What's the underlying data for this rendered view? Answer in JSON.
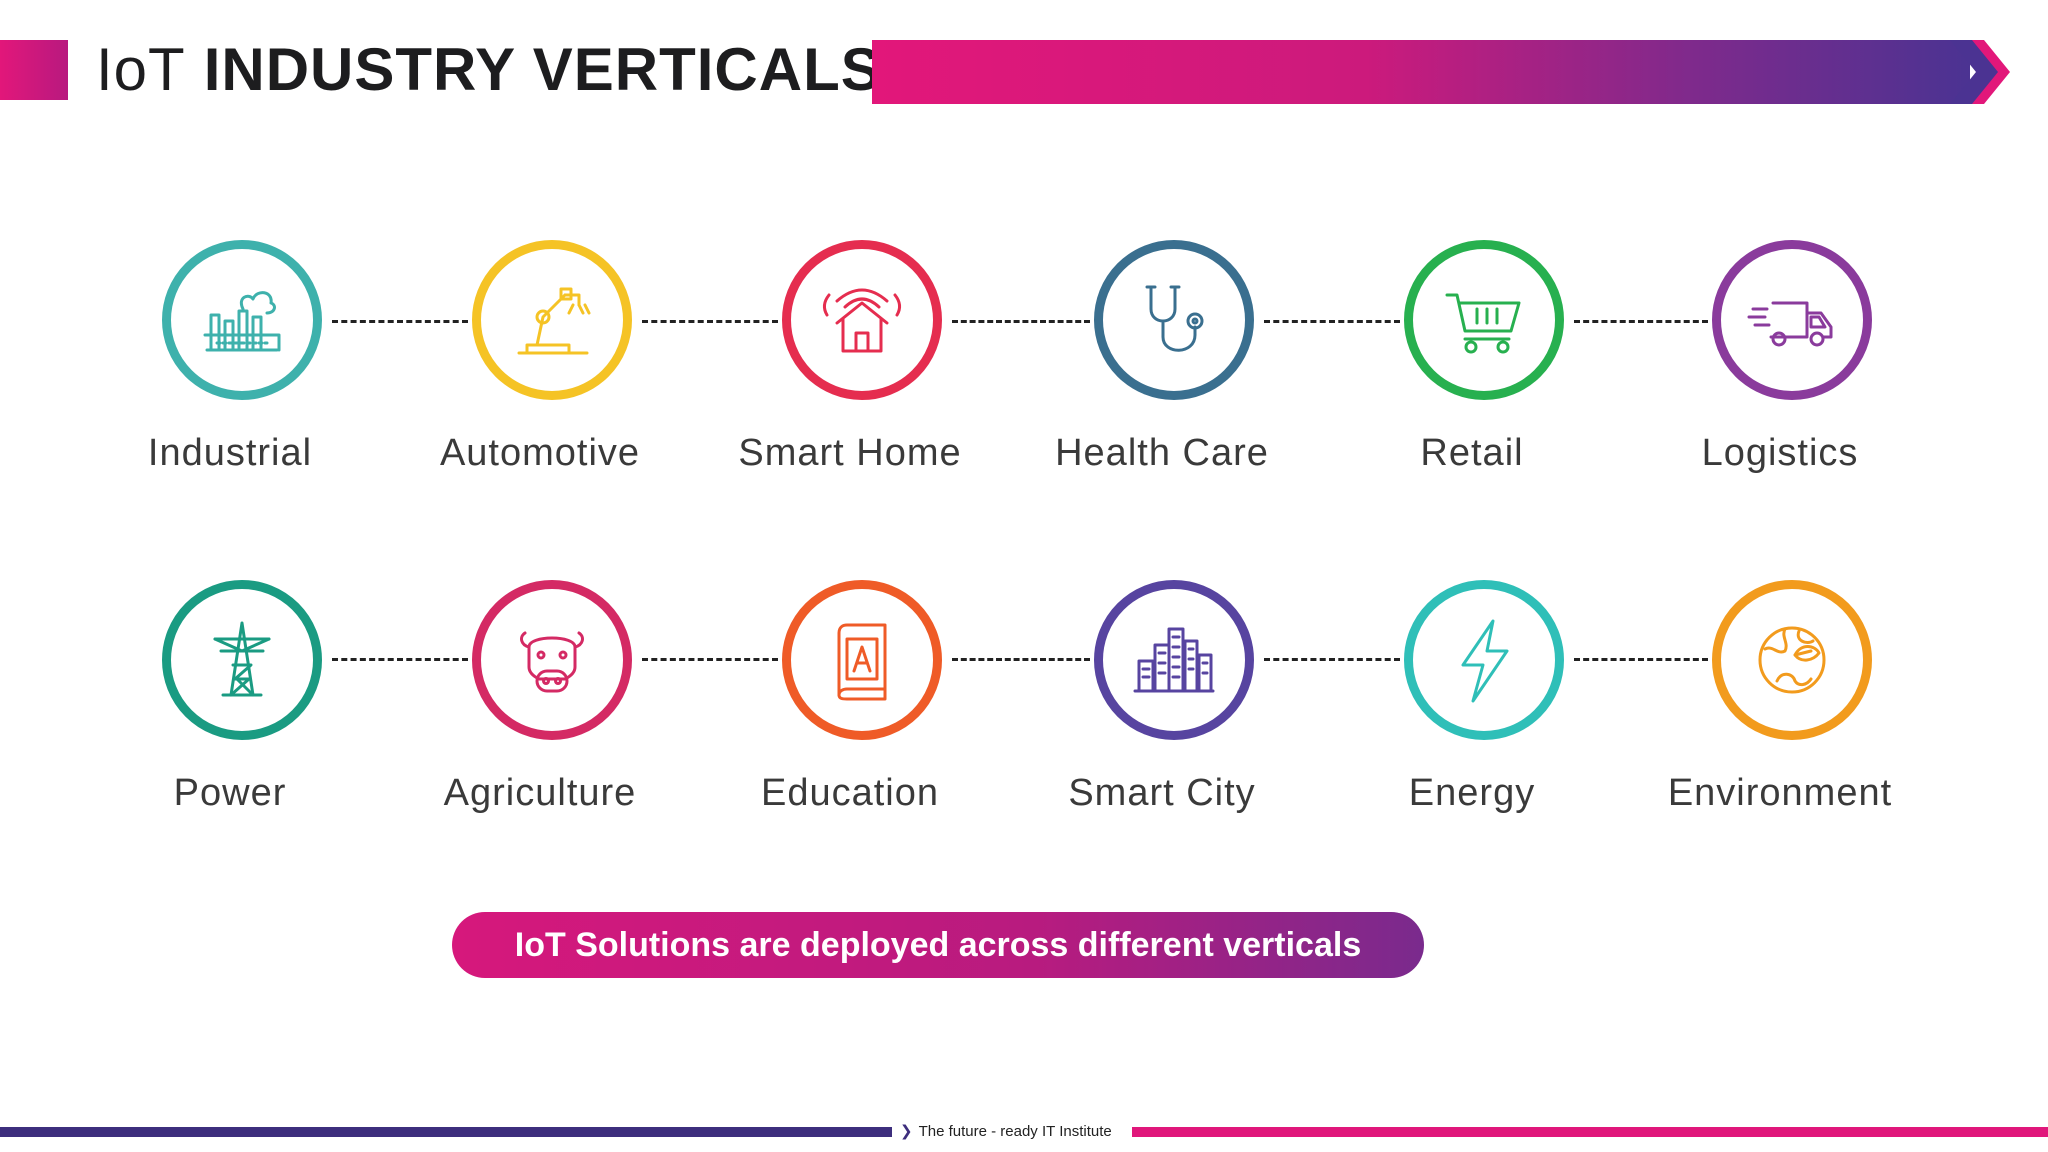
{
  "header": {
    "title_prefix": "IoT",
    "title_main": "INDUSTRY VERTICALS"
  },
  "verticals": [
    {
      "label": "Industrial",
      "icon": "factory-icon",
      "color": "#3eb1ac"
    },
    {
      "label": "Automotive",
      "icon": "robot-arm-icon",
      "color": "#f5c325"
    },
    {
      "label": "Smart Home",
      "icon": "smart-home-icon",
      "color": "#e52d4f"
    },
    {
      "label": "Health Care",
      "icon": "stethoscope-icon",
      "color": "#3a6f8f"
    },
    {
      "label": "Retail",
      "icon": "shopping-cart-icon",
      "color": "#27b04f"
    },
    {
      "label": "Logistics",
      "icon": "delivery-truck-icon",
      "color": "#8a3b9c"
    },
    {
      "label": "Power",
      "icon": "power-tower-icon",
      "color": "#1a9b82"
    },
    {
      "label": "Agriculture",
      "icon": "cow-icon",
      "color": "#d42a64"
    },
    {
      "label": "Education",
      "icon": "book-icon",
      "color": "#ef5b27"
    },
    {
      "label": "Smart City",
      "icon": "city-buildings-icon",
      "color": "#5744a0"
    },
    {
      "label": "Energy",
      "icon": "lightning-icon",
      "color": "#2fbfb8"
    },
    {
      "label": "Environment",
      "icon": "globe-leaf-icon",
      "color": "#f29b1d"
    }
  ],
  "tagline": "IoT Solutions are deployed across different verticals",
  "footer": {
    "text": "The future - ready IT Institute"
  }
}
